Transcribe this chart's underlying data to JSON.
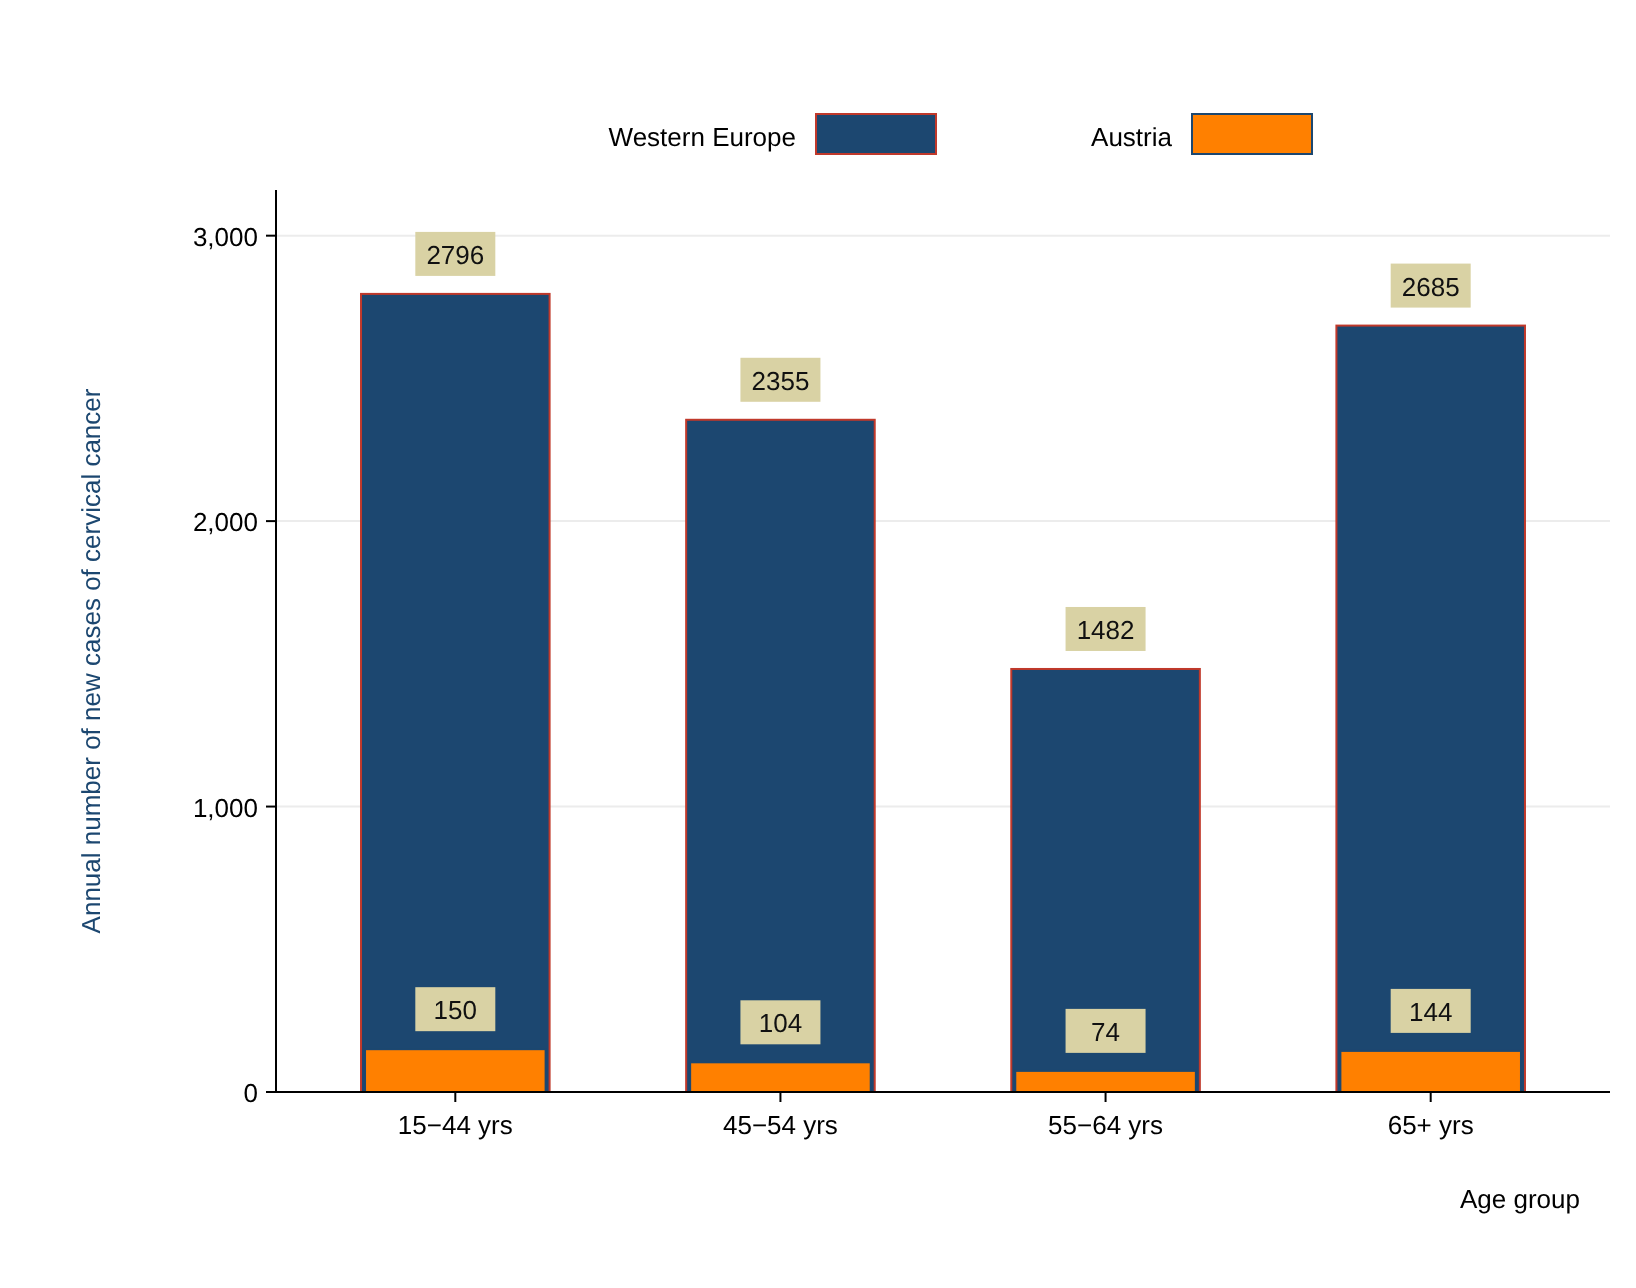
{
  "chart_data": {
    "type": "bar",
    "xlabel": "Age group",
    "ylabel": "Annual number of new cases of cervical cancer",
    "categories": [
      "15−44 yrs",
      "45−54 yrs",
      "55−64 yrs",
      "65+ yrs"
    ],
    "series": [
      {
        "name": "Western Europe",
        "color": "#1c4770",
        "values": [
          2796,
          2355,
          1482,
          2685
        ]
      },
      {
        "name": "Austria",
        "color": "#ff8000",
        "values": [
          150,
          104,
          74,
          144
        ]
      }
    ],
    "ylim": [
      0,
      3160
    ],
    "yticks": [
      {
        "value": 0,
        "label": "0"
      },
      {
        "value": 1000,
        "label": "1,000"
      },
      {
        "value": 2000,
        "label": "2,000"
      },
      {
        "value": 3000,
        "label": "3,000"
      }
    ],
    "grid": "y",
    "legend": "top",
    "data_labels": true
  }
}
